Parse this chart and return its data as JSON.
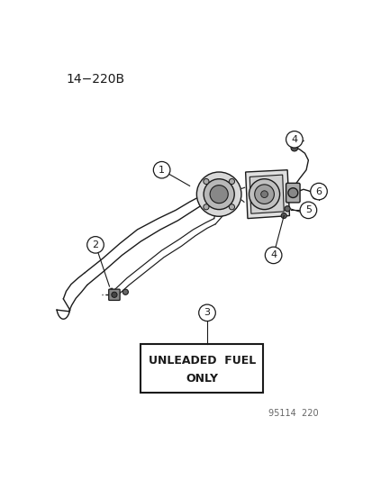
{
  "title_text": "14−220B",
  "footer_text": "95114  220",
  "bg_color": "#ffffff",
  "line_color": "#1a1a1a",
  "gray_fill": "#cccccc",
  "dark_fill": "#555555",
  "light_fill": "#e8e8e8",
  "box_text1": "UNLEADED  FUEL",
  "box_text2": "ONLY"
}
